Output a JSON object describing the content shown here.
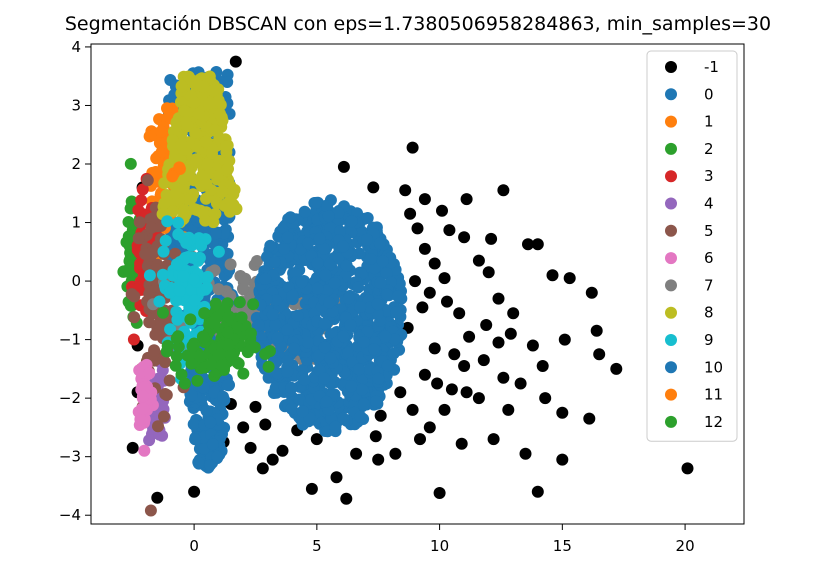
{
  "chart_data": {
    "type": "scatter",
    "title": "Segmentación DBSCAN con eps=1.7380506958284863, min_samples=30",
    "xlim": [
      -4.2,
      22.4
    ],
    "ylim": [
      -4.15,
      4.05
    ],
    "xticks": [
      0,
      5,
      10,
      15,
      20
    ],
    "yticks": [
      -4,
      -3,
      -2,
      -1,
      0,
      1,
      2,
      3,
      4
    ],
    "legend_position": "top-right",
    "grid": false,
    "colors": {
      "-1": "#000000",
      "0": "#1f77b4",
      "1": "#ff7f0e",
      "2": "#2ca02c",
      "3": "#d62728",
      "4": "#9467bd",
      "5": "#8c564b",
      "6": "#e377c2",
      "7": "#7f7f7f",
      "8": "#bcbd22",
      "9": "#17becf",
      "10": "#1f77b4",
      "11": "#ff7f0e",
      "12": "#2ca02c"
    },
    "series": [
      {
        "name": "-1",
        "points": [
          [
            6.1,
            1.95
          ],
          [
            8.9,
            2.28
          ],
          [
            11.1,
            1.4
          ],
          [
            12.6,
            1.55
          ],
          [
            10.4,
            0.87
          ],
          [
            11.0,
            0.75
          ],
          [
            12.1,
            0.72
          ],
          [
            13.6,
            0.63
          ],
          [
            14.0,
            0.63
          ],
          [
            14.6,
            0.1
          ],
          [
            15.3,
            0.05
          ],
          [
            16.2,
            -0.2
          ],
          [
            16.4,
            -0.85
          ],
          [
            16.5,
            -1.25
          ],
          [
            15.1,
            -1.0
          ],
          [
            13.8,
            -1.1
          ],
          [
            14.2,
            -1.45
          ],
          [
            12.4,
            -1.05
          ],
          [
            12.6,
            -1.65
          ],
          [
            11.1,
            -1.9
          ],
          [
            11.6,
            -2.0
          ],
          [
            12.8,
            -2.2
          ],
          [
            14.3,
            -2.0
          ],
          [
            15.0,
            -2.25
          ],
          [
            16.1,
            -2.35
          ],
          [
            17.2,
            -1.5
          ],
          [
            20.1,
            -3.2
          ],
          [
            14.0,
            -3.6
          ],
          [
            15.0,
            -3.05
          ],
          [
            13.5,
            -2.95
          ],
          [
            12.2,
            -2.7
          ],
          [
            10.9,
            -2.78
          ],
          [
            10.2,
            -2.2
          ],
          [
            9.6,
            -2.5
          ],
          [
            10.0,
            -3.62
          ],
          [
            7.5,
            -3.05
          ],
          [
            5.8,
            -3.35
          ],
          [
            6.2,
            -3.72
          ],
          [
            4.8,
            -3.55
          ],
          [
            3.2,
            -3.05
          ],
          [
            2.8,
            -3.2
          ],
          [
            2.3,
            -2.85
          ],
          [
            2.0,
            -2.5
          ],
          [
            1.5,
            -2.1
          ],
          [
            0.9,
            -1.8
          ],
          [
            0.0,
            -3.6
          ],
          [
            -1.5,
            -3.7
          ],
          [
            -2.3,
            -1.9
          ],
          [
            -2.5,
            -2.85
          ],
          [
            -2.3,
            -1.1
          ],
          [
            -2.1,
            1.6
          ],
          [
            -2.3,
            0.5
          ],
          [
            1.7,
            3.75
          ],
          [
            8.6,
            1.55
          ],
          [
            8.8,
            1.15
          ],
          [
            9.1,
            0.9
          ],
          [
            9.4,
            0.55
          ],
          [
            9.8,
            0.3
          ],
          [
            10.2,
            0.05
          ],
          [
            9.6,
            -0.2
          ],
          [
            10.3,
            -0.35
          ],
          [
            10.8,
            -0.55
          ],
          [
            11.2,
            -0.95
          ],
          [
            10.6,
            -1.25
          ],
          [
            11.0,
            -1.45
          ],
          [
            9.8,
            -1.15
          ],
          [
            9.4,
            -1.6
          ],
          [
            9.9,
            -1.75
          ],
          [
            10.5,
            -1.85
          ],
          [
            8.9,
            -2.2
          ],
          [
            9.2,
            -2.7
          ],
          [
            8.2,
            -2.95
          ],
          [
            7.4,
            -2.65
          ],
          [
            6.6,
            -2.95
          ],
          [
            5.0,
            -2.7
          ],
          [
            4.2,
            -2.55
          ],
          [
            2.9,
            -2.45
          ],
          [
            2.5,
            -2.15
          ],
          [
            12.0,
            0.15
          ],
          [
            12.4,
            -0.3
          ],
          [
            13.0,
            -0.55
          ],
          [
            12.9,
            -0.9
          ],
          [
            11.8,
            -1.35
          ],
          [
            13.3,
            -1.75
          ],
          [
            10.1,
            1.2
          ],
          [
            9.4,
            1.4
          ],
          [
            11.6,
            0.35
          ],
          [
            11.9,
            -0.75
          ],
          [
            9.0,
            0.0
          ],
          [
            9.3,
            -0.45
          ],
          [
            8.7,
            -0.8
          ],
          [
            8.4,
            -1.9
          ],
          [
            7.6,
            -2.3
          ],
          [
            3.6,
            -2.9
          ],
          [
            1.2,
            -2.75
          ],
          [
            7.3,
            1.6
          ]
        ]
      },
      {
        "name": "0",
        "points": []
      },
      {
        "name": "1",
        "points": []
      },
      {
        "name": "2",
        "points": []
      },
      {
        "name": "3",
        "points": []
      },
      {
        "name": "4",
        "points": []
      },
      {
        "name": "5",
        "points": []
      },
      {
        "name": "6",
        "points": []
      },
      {
        "name": "7",
        "points": []
      },
      {
        "name": "8",
        "points": []
      },
      {
        "name": "9",
        "points": []
      },
      {
        "name": "10",
        "points": []
      },
      {
        "name": "11",
        "points": []
      },
      {
        "name": "12",
        "points": []
      }
    ]
  }
}
